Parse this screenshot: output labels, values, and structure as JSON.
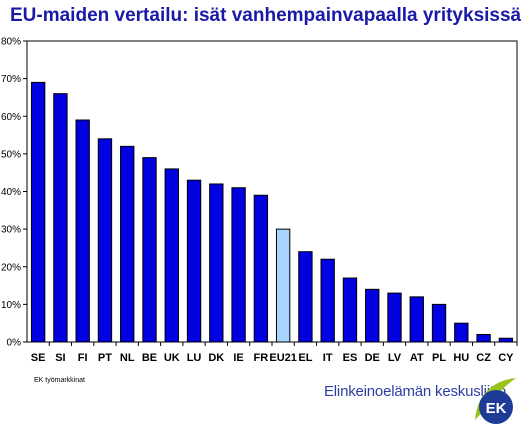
{
  "title": "EU-maiden vertailu: isät vanhempainvapaalla yrityksissä",
  "source_note": "EK työmarkkinat",
  "brand": {
    "name": "Elinkeinoelämän keskusliitto",
    "logo_text": "EK"
  },
  "colors": {
    "title": "#1a1aa6",
    "bar": "#0000e0",
    "highlight_bar": "#a6d4ff",
    "brand_text": "#2b3fa3",
    "logo_blue": "#1e3c96",
    "logo_green": "#9ac31c"
  },
  "chart_data": {
    "type": "bar",
    "title": "EU-maiden vertailu: isät vanhempainvapaalla yrityksissä",
    "xlabel": "",
    "ylabel": "",
    "unit": "%",
    "ylim": [
      0,
      80
    ],
    "yticks": [
      0,
      10,
      20,
      30,
      40,
      50,
      60,
      70,
      80
    ],
    "ytick_labels": [
      "0%",
      "10%",
      "20%",
      "30%",
      "40%",
      "50%",
      "60%",
      "70%",
      "80%"
    ],
    "grid": false,
    "legend": "none",
    "categories": [
      "SE",
      "SI",
      "FI",
      "PT",
      "NL",
      "BE",
      "UK",
      "LU",
      "DK",
      "IE",
      "FR",
      "EU21",
      "EL",
      "IT",
      "ES",
      "DE",
      "LV",
      "AT",
      "PL",
      "HU",
      "CZ",
      "CY"
    ],
    "values": [
      69,
      66,
      59,
      54,
      52,
      49,
      46,
      43,
      42,
      41,
      39,
      30,
      24,
      22,
      17,
      14,
      13,
      12,
      10,
      5,
      2,
      1
    ],
    "highlight": "EU21"
  }
}
